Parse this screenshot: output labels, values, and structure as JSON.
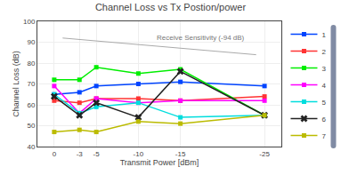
{
  "chart_data": {
    "type": "line",
    "title": "Channel Loss vs Tx Postion/power",
    "xlabel": "Transmit Power [dBm]",
    "ylabel": "Channel Loss (dB)",
    "x": [
      0,
      -3,
      -5,
      -10,
      -15,
      -25
    ],
    "series": [
      {
        "name": "1",
        "color": "#0044ff",
        "marker": "square",
        "values": [
          65,
          66,
          69,
          70,
          71,
          69
        ]
      },
      {
        "name": "2",
        "color": "#ff3333",
        "marker": "square",
        "values": [
          62,
          61,
          63,
          63,
          62,
          64
        ]
      },
      {
        "name": "3",
        "color": "#00ee00",
        "marker": "square",
        "values": [
          72,
          72,
          78,
          75,
          77,
          55
        ]
      },
      {
        "name": "4",
        "color": "#ff00ff",
        "marker": "square",
        "values": [
          69,
          56,
          63,
          61,
          62,
          62
        ]
      },
      {
        "name": "5",
        "color": "#00dddd",
        "marker": "square",
        "values": [
          65,
          56,
          59,
          61,
          54,
          55
        ]
      },
      {
        "name": "6",
        "color": "#222222",
        "marker": "x",
        "values": [
          64,
          55,
          61,
          54,
          76,
          55
        ]
      },
      {
        "name": "7",
        "color": "#bbbb00",
        "marker": "square",
        "values": [
          47,
          48,
          47,
          52,
          51,
          55
        ]
      },
      {
        "x": [
          -1,
          -24
        ],
        "values": [
          92,
          84
        ],
        "line_style": "solid"
      }
    ],
    "annotations": [
      {
        "text": "Receive Sensitivity (-94 dB)",
        "x": -12,
        "y": 89.5
      }
    ],
    "xlim": [
      2,
      -27
    ],
    "xticks": [
      0,
      -3,
      -5,
      -10,
      -15,
      -25
    ],
    "ylim": [
      40,
      100
    ],
    "yticks": [
      40,
      50,
      60,
      70,
      80,
      90,
      100
    ],
    "grid": true,
    "legend": "upper right"
  }
}
